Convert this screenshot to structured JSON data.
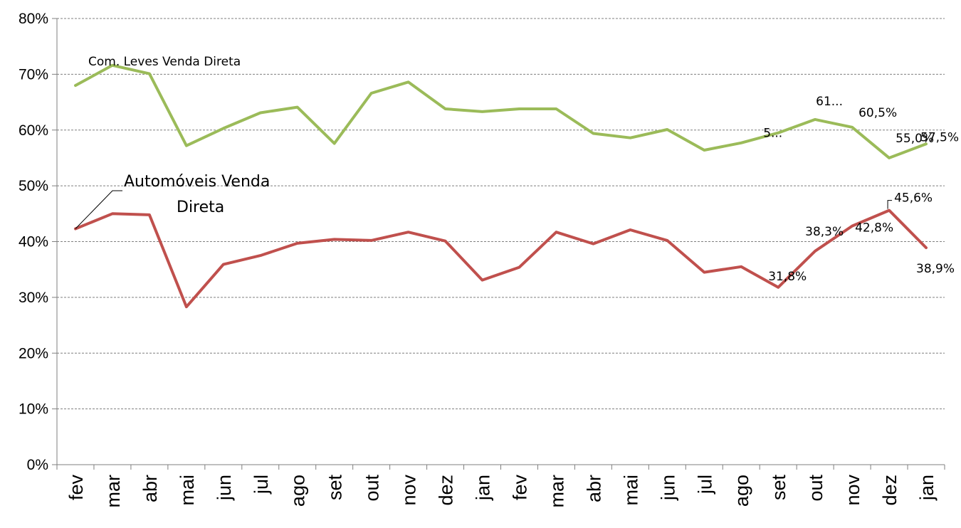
{
  "chart_data": {
    "type": "line",
    "categories": [
      "fev",
      "mar",
      "abr",
      "mai",
      "jun",
      "jul",
      "ago",
      "set",
      "out",
      "nov",
      "dez",
      "jan",
      "fev",
      "mar",
      "abr",
      "mai",
      "jun",
      "jul",
      "ago",
      "set",
      "out",
      "nov",
      "dez",
      "jan"
    ],
    "ylim": [
      0,
      80
    ],
    "yticks": [
      "0%",
      "10%",
      "20%",
      "30%",
      "40%",
      "50%",
      "60%",
      "70%",
      "80%"
    ],
    "grid": "horizontal-dashed",
    "series": [
      {
        "name": "Com. Leves Venda Direta",
        "color": "#9BBB59",
        "values": [
          68.0,
          71.6,
          70.1,
          57.2,
          60.3,
          63.1,
          64.1,
          57.6,
          66.6,
          68.6,
          63.8,
          63.3,
          63.8,
          63.8,
          59.4,
          58.6,
          60.1,
          56.4,
          57.7,
          59.5,
          61.9,
          60.5,
          55.0,
          57.5
        ],
        "data_labels": [
          {
            "index": 19,
            "text": "5..."
          },
          {
            "index": 20,
            "text": "61..."
          },
          {
            "index": 21,
            "text": "60,5%"
          },
          {
            "index": 22,
            "text": "55,0%"
          },
          {
            "index": 23,
            "text": "57,5%"
          }
        ]
      },
      {
        "name": "Automóveis Venda Direta",
        "color": "#C0504D",
        "name_lines": [
          "Automóveis Venda",
          "Direta"
        ],
        "values": [
          42.3,
          45.0,
          44.8,
          28.3,
          35.9,
          37.5,
          39.7,
          40.4,
          40.2,
          41.7,
          40.1,
          33.1,
          35.4,
          41.7,
          39.6,
          42.1,
          40.2,
          34.5,
          35.5,
          31.8,
          38.3,
          42.8,
          45.6,
          38.9
        ],
        "data_labels": [
          {
            "index": 19,
            "text": "31,8%"
          },
          {
            "index": 20,
            "text": "38,3%"
          },
          {
            "index": 21,
            "text": "42,8%"
          },
          {
            "index": 22,
            "text": "45,6%"
          },
          {
            "index": 23,
            "text": "38,9%"
          }
        ]
      }
    ]
  }
}
